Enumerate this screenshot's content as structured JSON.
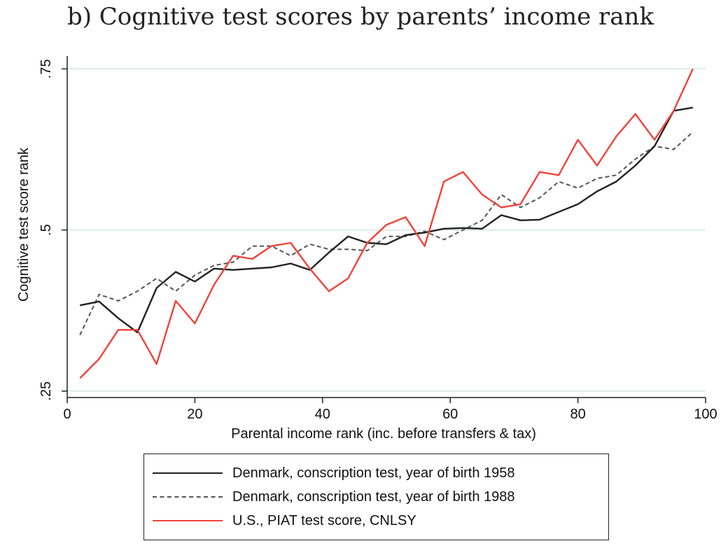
{
  "chart_data": {
    "type": "line",
    "title": "b) Cognitive test scores by parents’ income rank",
    "xlabel": "Parental income rank (inc. before transfers & tax)",
    "ylabel": "Cognitive test score rank",
    "xlim": [
      0,
      100
    ],
    "ylim": [
      0.24,
      0.77
    ],
    "xticks": [
      0,
      20,
      40,
      60,
      80,
      100
    ],
    "xtick_labels": [
      "0",
      "20",
      "40",
      "60",
      "80",
      "100"
    ],
    "yticks": [
      0.25,
      0.5,
      0.75
    ],
    "ytick_labels": [
      ".25",
      ".5",
      ".75"
    ],
    "grid": "horizontal",
    "legend_position": "bottom",
    "x": [
      2,
      5,
      8,
      11,
      14,
      17,
      20,
      23,
      26,
      29,
      32,
      35,
      38,
      41,
      44,
      47,
      50,
      53,
      56,
      59,
      62,
      65,
      68,
      71,
      74,
      77,
      80,
      83,
      86,
      89,
      92,
      95,
      98
    ],
    "series": [
      {
        "name": "Denmark, conscription test, year of birth 1958",
        "color": "#222222",
        "style": "solid",
        "values": [
          0.383,
          0.389,
          0.363,
          0.341,
          0.41,
          0.435,
          0.42,
          0.44,
          0.438,
          0.44,
          0.442,
          0.448,
          0.438,
          0.465,
          0.49,
          0.48,
          0.478,
          0.492,
          0.496,
          0.502,
          0.503,
          0.502,
          0.523,
          0.515,
          0.516,
          0.528,
          0.54,
          0.56,
          0.575,
          0.6,
          0.63,
          0.685,
          0.69
        ]
      },
      {
        "name": "Denmark, conscription test, year of birth 1988",
        "color": "#555555",
        "style": "dashed",
        "values": [
          0.337,
          0.4,
          0.39,
          0.405,
          0.425,
          0.405,
          0.43,
          0.445,
          0.45,
          0.475,
          0.475,
          0.46,
          0.478,
          0.47,
          0.47,
          0.468,
          0.49,
          0.49,
          0.498,
          0.485,
          0.5,
          0.515,
          0.555,
          0.535,
          0.55,
          0.575,
          0.565,
          0.58,
          0.585,
          0.61,
          0.63,
          0.625,
          0.652
        ]
      },
      {
        "name": "U.S., PIAT test score, CNLSY",
        "color": "#f0433a",
        "style": "solid",
        "values": [
          0.27,
          0.3,
          0.345,
          0.345,
          0.292,
          0.39,
          0.355,
          0.415,
          0.46,
          0.455,
          0.475,
          0.48,
          0.44,
          0.405,
          0.425,
          0.48,
          0.508,
          0.52,
          0.475,
          0.575,
          0.59,
          0.555,
          0.535,
          0.54,
          0.59,
          0.585,
          0.64,
          0.6,
          0.645,
          0.68,
          0.64,
          0.685,
          0.75
        ]
      }
    ]
  }
}
